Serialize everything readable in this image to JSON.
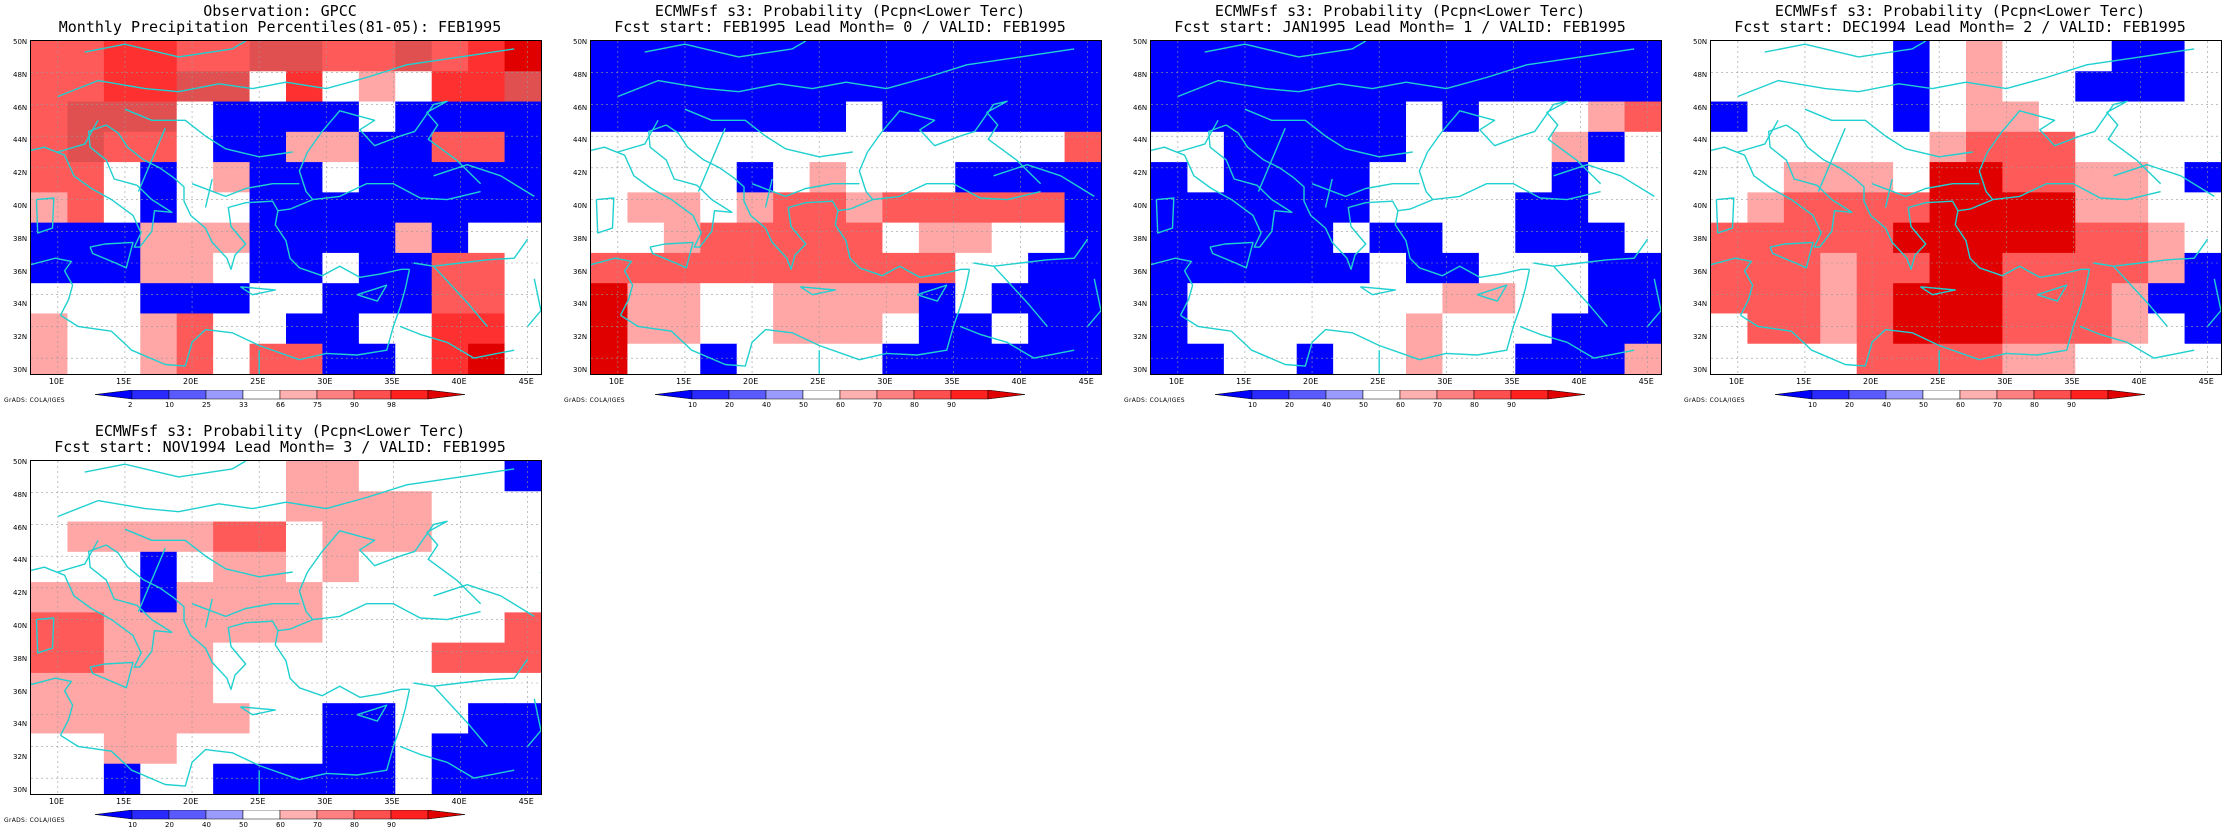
{
  "lat_labels": [
    "50N",
    "48N",
    "46N",
    "44N",
    "42N",
    "40N",
    "38N",
    "36N",
    "34N",
    "32N",
    "30N"
  ],
  "lon_labels": [
    "10E",
    "15E",
    "20E",
    "25E",
    "30E",
    "35E",
    "40E",
    "45E"
  ],
  "credit": "GrADS: COLA/IGES",
  "palette": {
    "deep_blue": "#0000ff",
    "mid_blue": "#4040ff",
    "light_blue": "#a6a6ff",
    "white": "#ffffff",
    "light_red": "#ffa6a6",
    "mid_red": "#ff5a5a",
    "red": "#ff2020",
    "deep_red": "#e00000",
    "coast": "#20d0d0"
  },
  "panels": [
    {
      "title1": "Observation: GPCC",
      "title2": "Monthly Precipitation Percentiles(81-05): FEB1995",
      "colorbar_labels": [
        "2",
        "10",
        "25",
        "33",
        "66",
        "75",
        "90",
        "98"
      ],
      "grid": [
        "RRAARRMMRRMRAD",
        "RRAAMMWAWLWAAM",
        "RMMMWBBBBWBBBB",
        "RMRRWBBLLBBRRB",
        "RRWBWLBBWBBBBB",
        "LRWBWWBBBBBBBB",
        "BBBLLLBBBBLBWW",
        "BBBLLWBBWBBRRW",
        "WWWBBBWWBBBRRW",
        "LWWLRWWBBWWAAW",
        "LWWLRWRRBBWADW"
      ]
    },
    {
      "title1": "ECMWFsf s3: Probability (Pcpn<Lower Terc)",
      "title2": "Fcst start: FEB1995  Lead Month= 0 / VALID: FEB1995",
      "colorbar_labels": [
        "10",
        "20",
        "40",
        "50",
        "60",
        "70",
        "80",
        "90"
      ],
      "grid": [
        "BBBBBBBBBBBBBB",
        "BBBBBBBBBBBBBB",
        "BBBBBBBWBBBBBB",
        "WWWWWWWWWWWWWR",
        "WWWWBWLWWWBBBB",
        "WLLWLRRLRRRRRB",
        "WWLRRRRRWLLWWB",
        "RRRRRRRRRRWWBB",
        "DLLWWLLLLBWBBB",
        "DLLWWLLLWBBWBB",
        "DWWBWWWWBBBBBB"
      ]
    },
    {
      "title1": "ECMWFsf s3: Probability (Pcpn<Lower Terc)",
      "title2": "Fcst start: JAN1995  Lead Month= 1 / VALID: FEB1995",
      "colorbar_labels": [
        "10",
        "20",
        "40",
        "50",
        "60",
        "70",
        "80",
        "90"
      ],
      "grid": [
        "BBBBBBBBBBBBBB",
        "BBBBBBBBBBBBBB",
        "BBBBBBBWBWWWLR",
        "WWBBBBBWWWWLBW",
        "BWBBBBWWWWWBWW",
        "BBBBBBWWWWBBWW",
        "BBBBBWBBWWBBBW",
        "BBBBBBWBBWWWBB",
        "BWWWWWWWLLWWBB",
        "BWWWWWWLWWWBBB",
        "BBWWBWWLWWBBBL"
      ]
    },
    {
      "title1": "ECMWFsf s3: Probability (Pcpn<Lower Terc)",
      "title2": "Fcst start: DEC1994  Lead Month= 2 / VALID: FEB1995",
      "colorbar_labels": [
        "10",
        "20",
        "40",
        "50",
        "60",
        "70",
        "80",
        "90"
      ],
      "grid": [
        "WWWWWBWLWWWBBW",
        "WWWWWBWLWWBBBW",
        "BWWWWBWLLWWWWW",
        "WWWWWWLRRRWWWW",
        "WWLLLWDDRRLLWB",
        "WLRRRRDDDDLLWW",
        "RRRRRDDDDDRRLW",
        "RRRLRRDDRRRRLB",
        "RRRLRDDDRRRLBB",
        "WRRLRDDDRRRLWB",
        "WWWWRRRRLLWWWW"
      ]
    },
    {
      "title1": "ECMWFsf s3: Probability (Pcpn<Lower Terc)",
      "title2": "Fcst start: NOV1994  Lead Month= 3 / VALID: FEB1995",
      "colorbar_labels": [
        "10",
        "20",
        "40",
        "50",
        "60",
        "70",
        "80",
        "90"
      ],
      "grid": [
        "WWWWWWWLLWWWWB",
        "WWWWWWWLLLLWWW",
        "WLLLLRRWLLLWWW",
        "WWWBWLLWLWWWWW",
        "LLLBLLLLWWWWWW",
        "RRLLLLLLWWWWWR",
        "RRLLLWWWWWWRRR",
        "LLLLLWWWWWWWWW",
        "LLLLLLWWBBWWBB",
        "WWLLWWWWBBWBBB",
        "WWBWWBBBBBWBBB"
      ]
    }
  ]
}
